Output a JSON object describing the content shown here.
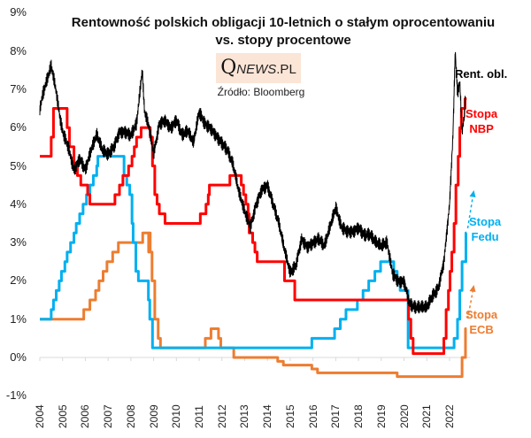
{
  "chart_data": {
    "type": "line",
    "title": "Rentowność polskich obligacji 10-letnich o stałym oprocentowaniu",
    "subtitle": "vs. stopy procentowe",
    "logo_text": {
      "q": "Q",
      "news": "NEWS",
      "pl": ".PL"
    },
    "source": "Źródło: Bloomberg",
    "xlabel": "",
    "ylabel": "",
    "xlim": [
      2004,
      2022.75
    ],
    "ylim": [
      -1,
      9
    ],
    "y_ticks": [
      "-1%",
      "0%",
      "1%",
      "2%",
      "3%",
      "4%",
      "5%",
      "6%",
      "7%",
      "8%",
      "9%"
    ],
    "x_ticks": [
      "2004",
      "2005",
      "2006",
      "2007",
      "2008",
      "2009",
      "2010",
      "2011",
      "2012",
      "2013",
      "2014",
      "2015",
      "2016",
      "2017",
      "2018",
      "2019",
      "2020",
      "2021",
      "2022"
    ],
    "grid": false,
    "colors": {
      "yield": "#000000",
      "nbp": "#ff0000",
      "fed": "#00b0f0",
      "ecb": "#ed7d31"
    },
    "series": [
      {
        "name": "Rent. obl.",
        "label_lines": [
          "Rent. obl."
        ],
        "type": "line",
        "points": [
          [
            2004.0,
            6.5
          ],
          [
            2004.15,
            6.9
          ],
          [
            2004.3,
            7.2
          ],
          [
            2004.5,
            7.6
          ],
          [
            2004.7,
            7.0
          ],
          [
            2004.9,
            6.2
          ],
          [
            2005.0,
            5.9
          ],
          [
            2005.25,
            5.5
          ],
          [
            2005.5,
            4.9
          ],
          [
            2005.75,
            5.2
          ],
          [
            2006.0,
            4.9
          ],
          [
            2006.25,
            5.4
          ],
          [
            2006.5,
            5.8
          ],
          [
            2006.75,
            5.4
          ],
          [
            2007.0,
            5.3
          ],
          [
            2007.25,
            5.5
          ],
          [
            2007.5,
            5.9
          ],
          [
            2007.75,
            5.9
          ],
          [
            2008.0,
            5.8
          ],
          [
            2008.25,
            6.1
          ],
          [
            2008.5,
            7.5
          ],
          [
            2008.6,
            6.4
          ],
          [
            2008.8,
            6.0
          ],
          [
            2009.0,
            5.3
          ],
          [
            2009.25,
            6.1
          ],
          [
            2009.5,
            6.2
          ],
          [
            2009.75,
            6.0
          ],
          [
            2010.0,
            6.2
          ],
          [
            2010.25,
            5.8
          ],
          [
            2010.5,
            5.9
          ],
          [
            2010.75,
            5.6
          ],
          [
            2011.0,
            6.4
          ],
          [
            2011.25,
            6.1
          ],
          [
            2011.5,
            6.0
          ],
          [
            2011.75,
            5.8
          ],
          [
            2012.0,
            5.6
          ],
          [
            2012.25,
            5.4
          ],
          [
            2012.5,
            5.0
          ],
          [
            2012.75,
            4.3
          ],
          [
            2013.0,
            3.8
          ],
          [
            2013.25,
            3.4
          ],
          [
            2013.5,
            4.0
          ],
          [
            2013.75,
            4.4
          ],
          [
            2014.0,
            4.5
          ],
          [
            2014.25,
            4.0
          ],
          [
            2014.5,
            3.5
          ],
          [
            2014.75,
            2.8
          ],
          [
            2015.0,
            2.2
          ],
          [
            2015.25,
            2.4
          ],
          [
            2015.5,
            3.1
          ],
          [
            2015.75,
            2.9
          ],
          [
            2016.0,
            3.0
          ],
          [
            2016.25,
            3.1
          ],
          [
            2016.5,
            2.9
          ],
          [
            2016.75,
            3.4
          ],
          [
            2017.0,
            3.9
          ],
          [
            2017.25,
            3.4
          ],
          [
            2017.5,
            3.3
          ],
          [
            2017.75,
            3.3
          ],
          [
            2018.0,
            3.4
          ],
          [
            2018.25,
            3.2
          ],
          [
            2018.5,
            3.2
          ],
          [
            2018.75,
            3.0
          ],
          [
            2019.0,
            2.9
          ],
          [
            2019.25,
            3.0
          ],
          [
            2019.5,
            2.2
          ],
          [
            2019.75,
            2.0
          ],
          [
            2020.0,
            2.0
          ],
          [
            2020.25,
            1.4
          ],
          [
            2020.5,
            1.3
          ],
          [
            2020.75,
            1.3
          ],
          [
            2021.0,
            1.3
          ],
          [
            2021.25,
            1.6
          ],
          [
            2021.5,
            1.8
          ],
          [
            2021.75,
            2.5
          ],
          [
            2022.0,
            4.0
          ],
          [
            2022.15,
            5.8
          ],
          [
            2022.25,
            8.0
          ],
          [
            2022.35,
            6.9
          ],
          [
            2022.45,
            7.2
          ],
          [
            2022.55,
            5.9
          ],
          [
            2022.65,
            6.3
          ],
          [
            2022.7,
            6.8
          ]
        ]
      },
      {
        "name": "Stopa NBP",
        "label_lines": [
          "Stopa",
          "NBP"
        ],
        "type": "step",
        "points": [
          [
            2004.0,
            5.25
          ],
          [
            2004.5,
            5.75
          ],
          [
            2004.6,
            6.5
          ],
          [
            2005.2,
            6.0
          ],
          [
            2005.3,
            5.5
          ],
          [
            2005.5,
            5.0
          ],
          [
            2005.65,
            4.75
          ],
          [
            2005.8,
            4.5
          ],
          [
            2006.1,
            4.25
          ],
          [
            2006.2,
            4.0
          ],
          [
            2007.3,
            4.25
          ],
          [
            2007.5,
            4.5
          ],
          [
            2007.65,
            4.75
          ],
          [
            2007.9,
            5.0
          ],
          [
            2008.05,
            5.25
          ],
          [
            2008.15,
            5.5
          ],
          [
            2008.25,
            5.75
          ],
          [
            2008.45,
            6.0
          ],
          [
            2008.85,
            5.75
          ],
          [
            2008.95,
            5.0
          ],
          [
            2009.05,
            4.25
          ],
          [
            2009.15,
            4.0
          ],
          [
            2009.25,
            3.75
          ],
          [
            2009.5,
            3.5
          ],
          [
            2011.05,
            3.75
          ],
          [
            2011.3,
            4.0
          ],
          [
            2011.4,
            4.25
          ],
          [
            2011.45,
            4.5
          ],
          [
            2012.35,
            4.75
          ],
          [
            2012.85,
            4.5
          ],
          [
            2012.95,
            4.25
          ],
          [
            2013.05,
            4.0
          ],
          [
            2013.15,
            3.75
          ],
          [
            2013.2,
            3.25
          ],
          [
            2013.35,
            3.0
          ],
          [
            2013.45,
            2.75
          ],
          [
            2013.55,
            2.5
          ],
          [
            2014.75,
            2.0
          ],
          [
            2015.2,
            1.5
          ],
          [
            2020.2,
            1.0
          ],
          [
            2020.3,
            0.5
          ],
          [
            2020.4,
            0.1
          ],
          [
            2021.75,
            0.5
          ],
          [
            2021.85,
            1.25
          ],
          [
            2021.95,
            1.75
          ],
          [
            2022.02,
            2.25
          ],
          [
            2022.1,
            2.75
          ],
          [
            2022.2,
            3.5
          ],
          [
            2022.28,
            4.5
          ],
          [
            2022.38,
            5.25
          ],
          [
            2022.45,
            6.0
          ],
          [
            2022.52,
            6.5
          ],
          [
            2022.68,
            6.75
          ],
          [
            2022.75,
            6.75
          ]
        ]
      },
      {
        "name": "Stopa Fedu",
        "label_lines": [
          "Stopa",
          "Fedu"
        ],
        "type": "step",
        "points": [
          [
            2004.0,
            1.0
          ],
          [
            2004.5,
            1.25
          ],
          [
            2004.6,
            1.5
          ],
          [
            2004.72,
            1.75
          ],
          [
            2004.85,
            2.0
          ],
          [
            2004.95,
            2.25
          ],
          [
            2005.1,
            2.5
          ],
          [
            2005.2,
            2.75
          ],
          [
            2005.35,
            3.0
          ],
          [
            2005.5,
            3.25
          ],
          [
            2005.6,
            3.5
          ],
          [
            2005.75,
            3.75
          ],
          [
            2005.9,
            4.0
          ],
          [
            2006.05,
            4.25
          ],
          [
            2006.2,
            4.5
          ],
          [
            2006.35,
            4.75
          ],
          [
            2006.5,
            5.0
          ],
          [
            2006.55,
            5.25
          ],
          [
            2007.7,
            4.75
          ],
          [
            2007.82,
            4.5
          ],
          [
            2007.95,
            4.25
          ],
          [
            2008.05,
            3.5
          ],
          [
            2008.1,
            3.0
          ],
          [
            2008.22,
            2.25
          ],
          [
            2008.33,
            2.0
          ],
          [
            2008.77,
            1.5
          ],
          [
            2008.83,
            1.0
          ],
          [
            2008.95,
            0.25
          ],
          [
            2015.95,
            0.5
          ],
          [
            2016.95,
            0.75
          ],
          [
            2017.2,
            1.0
          ],
          [
            2017.45,
            1.25
          ],
          [
            2017.95,
            1.5
          ],
          [
            2018.2,
            1.75
          ],
          [
            2018.45,
            2.0
          ],
          [
            2018.72,
            2.25
          ],
          [
            2018.97,
            2.5
          ],
          [
            2019.55,
            2.25
          ],
          [
            2019.7,
            2.0
          ],
          [
            2019.83,
            1.75
          ],
          [
            2020.18,
            0.25
          ],
          [
            2022.2,
            0.5
          ],
          [
            2022.35,
            1.0
          ],
          [
            2022.45,
            1.75
          ],
          [
            2022.55,
            2.5
          ],
          [
            2022.72,
            3.25
          ],
          [
            2022.75,
            3.25
          ]
        ]
      },
      {
        "name": "Stopa ECB",
        "label_lines": [
          "Stopa",
          "ECB"
        ],
        "type": "step",
        "points": [
          [
            2004.0,
            1.0
          ],
          [
            2005.93,
            1.25
          ],
          [
            2006.2,
            1.5
          ],
          [
            2006.45,
            1.75
          ],
          [
            2006.6,
            2.0
          ],
          [
            2006.78,
            2.25
          ],
          [
            2006.95,
            2.5
          ],
          [
            2007.2,
            2.75
          ],
          [
            2007.45,
            3.0
          ],
          [
            2008.52,
            3.25
          ],
          [
            2008.78,
            2.75
          ],
          [
            2008.8,
            3.25
          ],
          [
            2008.85,
            2.75
          ],
          [
            2008.93,
            2.0
          ],
          [
            2009.05,
            1.0
          ],
          [
            2009.2,
            0.5
          ],
          [
            2009.3,
            0.25
          ],
          [
            2011.27,
            0.5
          ],
          [
            2011.52,
            0.75
          ],
          [
            2011.85,
            0.5
          ],
          [
            2011.95,
            0.25
          ],
          [
            2012.52,
            0.0
          ],
          [
            2014.45,
            -0.1
          ],
          [
            2014.7,
            -0.2
          ],
          [
            2015.95,
            -0.3
          ],
          [
            2016.2,
            -0.4
          ],
          [
            2019.7,
            -0.5
          ],
          [
            2022.55,
            0.0
          ],
          [
            2022.7,
            0.75
          ],
          [
            2022.75,
            0.75
          ]
        ]
      }
    ]
  }
}
